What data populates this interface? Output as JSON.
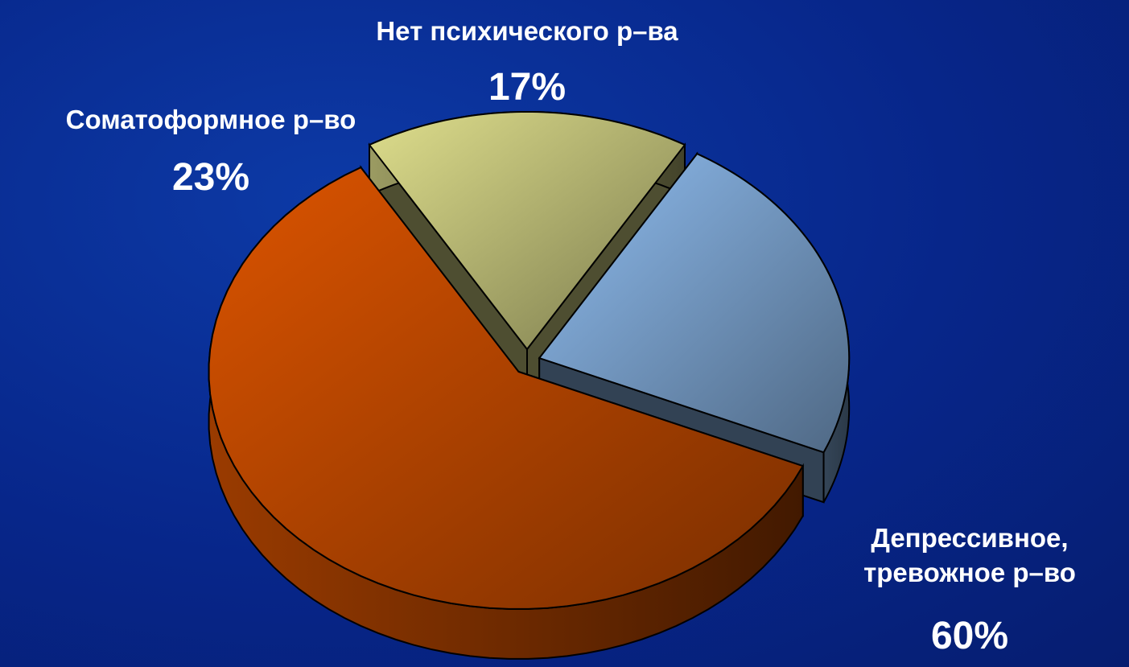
{
  "chart_data": {
    "type": "pie",
    "categories": [
      "Нет психического р–ва",
      "Соматоформное р–во",
      "Депрессивное, тревожное р–во"
    ],
    "values": [
      17,
      23,
      60
    ],
    "value_labels": [
      "17%",
      "23%",
      "60%"
    ],
    "colors": [
      "#dede8c",
      "#8fbdf0",
      "#dc5400"
    ]
  }
}
